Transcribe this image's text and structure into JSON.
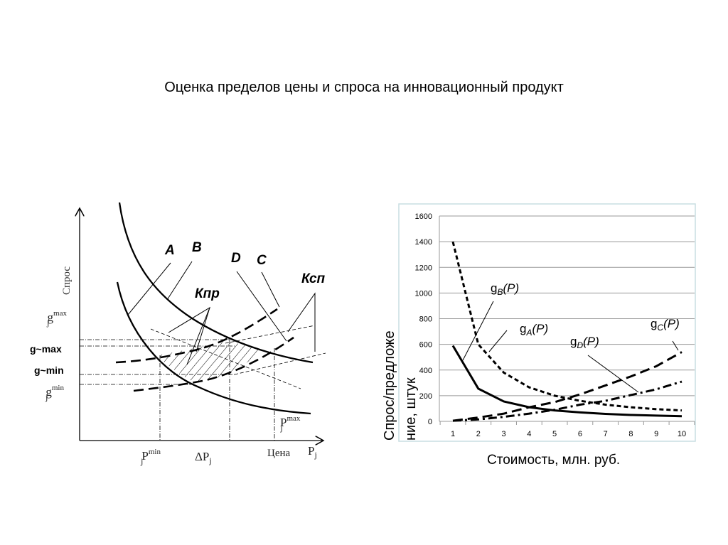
{
  "title": "Оценка пределов цены и спроса на инновационный продукт",
  "diagram": {
    "ylabel": "Спрос",
    "xlabel": "Цена",
    "x_axis_symbol": "P",
    "x_axis_sub": "j",
    "y_ticks": {
      "gmax": {
        "base": "g",
        "sub": "j",
        "sup": "max"
      },
      "g_tilde_max": "g~max",
      "g_tilde_min": "g~min",
      "gmin": {
        "base": "g",
        "sub": "j",
        "sup": "min"
      }
    },
    "x_ticks": {
      "pmin": {
        "base": "P",
        "sub": "j",
        "sup": "min"
      },
      "dp": {
        "base": "ΔP",
        "sub": "j"
      },
      "pmax": {
        "base": "P",
        "sub": "j",
        "sup": "max"
      }
    },
    "curve_labels": {
      "A": "A",
      "B": "B",
      "C": "C",
      "D": "D",
      "kpr": "Кпр",
      "ksp": "Ксп"
    }
  },
  "chart_data": {
    "type": "line",
    "title": "",
    "xlabel": "Стоимость, млн. руб.",
    "ylabel_lines": [
      "Спрос/предложе",
      "ние, штук"
    ],
    "x": [
      1,
      2,
      3,
      4,
      5,
      6,
      7,
      8,
      9,
      10
    ],
    "ylim": [
      0,
      1600
    ],
    "yticks": [
      0,
      200,
      400,
      600,
      800,
      1000,
      1200,
      1400,
      1600
    ],
    "grid": true,
    "series": [
      {
        "name": "gA(P)",
        "base": "g",
        "sub": "A",
        "arg": "(P)",
        "style": "solid",
        "values": [
          590,
          255,
          155,
          110,
          85,
          70,
          58,
          50,
          45,
          40
        ]
      },
      {
        "name": "gB(P)",
        "base": "g",
        "sub": "B",
        "arg": "(P)",
        "style": "short-dash",
        "values": [
          1400,
          600,
          380,
          265,
          200,
          160,
          130,
          110,
          95,
          85
        ]
      },
      {
        "name": "gC(P)",
        "base": "g",
        "sub": "C",
        "arg": "(P)",
        "style": "long-dash",
        "values": [
          5,
          30,
          60,
          110,
          150,
          210,
          280,
          350,
          430,
          540
        ]
      },
      {
        "name": "gD(P)",
        "base": "g",
        "sub": "D",
        "arg": "(P)",
        "style": "dash-dot",
        "values": [
          5,
          15,
          35,
          60,
          90,
          130,
          160,
          205,
          250,
          310
        ]
      }
    ]
  }
}
